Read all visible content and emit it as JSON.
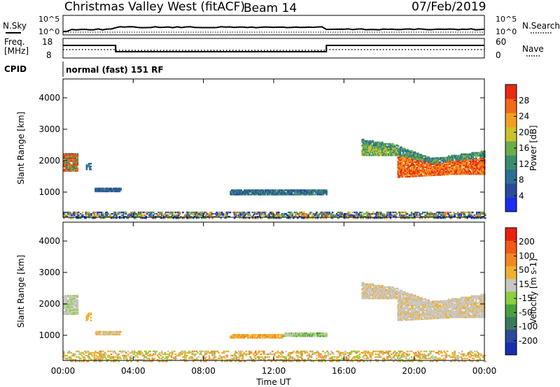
{
  "header": {
    "title": "Christmas Valley West (fitACF)",
    "beam": "Beam 14",
    "date": "07/Feb/2019"
  },
  "noise_panel": {
    "left_label": "N.Sky",
    "right_label": "N.Search",
    "tick_top": "10^5",
    "tick_bottom": "10^0"
  },
  "freq_panel": {
    "left_label_1": "Freq.",
    "left_label_2": "[MHz]",
    "left_ticks": [
      "18",
      "8"
    ],
    "right_label": "Nave",
    "right_ticks": [
      "60",
      "0"
    ]
  },
  "cpid_panel": {
    "label": "CPID",
    "text": "normal (fast) 151 RF"
  },
  "chart_data": [
    {
      "type": "heatmap",
      "name": "power",
      "ylabel": "Slant Range [km]",
      "yticks": [
        1000,
        2000,
        3000,
        4000
      ],
      "ylim": [
        200,
        4600
      ],
      "xlim": [
        0,
        24
      ],
      "colorbar": {
        "label": "Power [dB]",
        "ticks": [
          "28",
          "24",
          "20",
          "16",
          "12",
          "8",
          "4"
        ],
        "colors": [
          "#1a2cf0",
          "#2a4a9a",
          "#2e6e8e",
          "#3a8c6e",
          "#6aac4a",
          "#c9c22a",
          "#f0a020",
          "#f26a16",
          "#e82a14"
        ]
      }
    },
    {
      "type": "heatmap",
      "name": "velocity",
      "ylabel": "Slant Range [km]",
      "yticks": [
        1000,
        2000,
        3000,
        4000
      ],
      "ylim": [
        200,
        4600
      ],
      "xlim": [
        0,
        24
      ],
      "xticks": [
        "00:00",
        "04:00",
        "08:00",
        "12:00",
        "16:00",
        "20:00",
        "00:00"
      ],
      "xlabel": "Time UT",
      "colorbar": {
        "label": "Velocity [m s-1]",
        "ticks": [
          "200",
          "100",
          "50",
          "15",
          "-15",
          "-50",
          "-100",
          "-200"
        ],
        "colors": [
          "#1a2cb0",
          "#2a4a9a",
          "#3a7a5a",
          "#4aa040",
          "#8ad040",
          "#c8c6c0",
          "#f0b030",
          "#f08820",
          "#f05a14",
          "#e82010"
        ]
      }
    }
  ]
}
